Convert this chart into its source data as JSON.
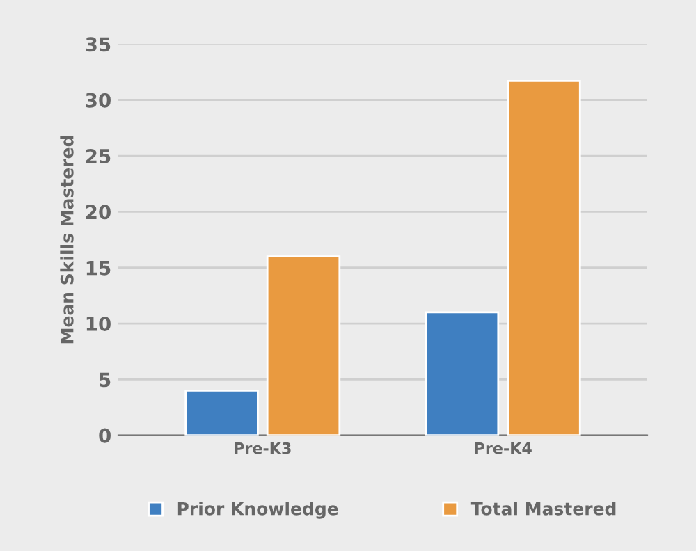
{
  "chart_data": {
    "type": "bar",
    "ylabel": "Mean Skills Mastered",
    "categories": [
      "Pre-K3",
      "Pre-K4"
    ],
    "series": [
      {
        "name": "Prior Knowledge",
        "color": "#3f7fc1",
        "values": [
          4,
          11
        ]
      },
      {
        "name": "Total Mastered",
        "color": "#e99a40",
        "values": [
          16,
          31.7
        ]
      }
    ],
    "ylim": [
      0,
      35
    ],
    "yticks": [
      0,
      5,
      10,
      15,
      20,
      25,
      30,
      35
    ],
    "grid": "y",
    "legend": "bottom"
  }
}
